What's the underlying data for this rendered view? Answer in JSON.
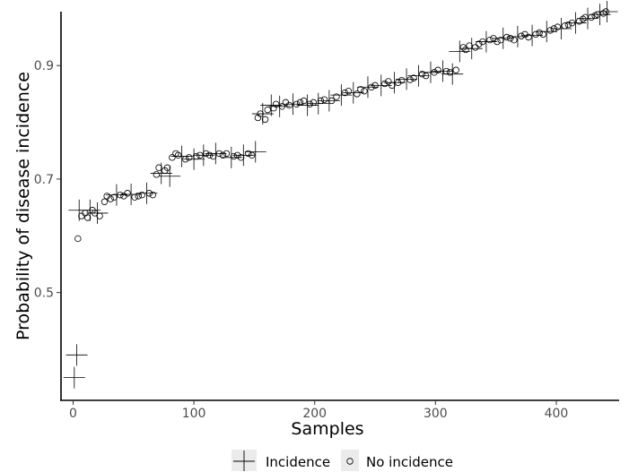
{
  "chart_data": {
    "type": "scatter",
    "title": "",
    "xlabel": "Samples",
    "ylabel": "Probability of disease incidence",
    "xlim": [
      -10,
      452
    ],
    "ylim": [
      0.31,
      0.995
    ],
    "xticks": [
      0,
      100,
      200,
      300,
      400
    ],
    "yticks": [
      0.5,
      0.7,
      0.9
    ],
    "xtick_labels": [
      "0",
      "100",
      "200",
      "300",
      "400"
    ],
    "ytick_labels": [
      "0.5",
      "0.7",
      "0.9"
    ],
    "grid": false,
    "legend_position": "bottom",
    "series": [
      {
        "name": "Incidence",
        "marker": "cross",
        "points": [
          [
            3,
            0.39
          ],
          [
            1,
            0.35
          ],
          [
            5,
            0.645
          ],
          [
            14,
            0.645
          ],
          [
            20,
            0.64
          ],
          [
            36,
            0.672
          ],
          [
            48,
            0.673
          ],
          [
            61,
            0.675
          ],
          [
            73,
            0.71
          ],
          [
            80,
            0.705
          ],
          [
            90,
            0.74
          ],
          [
            100,
            0.735
          ],
          [
            108,
            0.742
          ],
          [
            118,
            0.745
          ],
          [
            131,
            0.738
          ],
          [
            141,
            0.742
          ],
          [
            151,
            0.748
          ],
          [
            157,
            0.815
          ],
          [
            164,
            0.83
          ],
          [
            171,
            0.828
          ],
          [
            182,
            0.832
          ],
          [
            194,
            0.83
          ],
          [
            203,
            0.833
          ],
          [
            212,
            0.838
          ],
          [
            222,
            0.848
          ],
          [
            232,
            0.852
          ],
          [
            244,
            0.862
          ],
          [
            255,
            0.865
          ],
          [
            266,
            0.87
          ],
          [
            276,
            0.876
          ],
          [
            286,
            0.882
          ],
          [
            296,
            0.888
          ],
          [
            306,
            0.89
          ],
          [
            314,
            0.885
          ],
          [
            320,
            0.925
          ],
          [
            330,
            0.93
          ],
          [
            342,
            0.942
          ],
          [
            356,
            0.948
          ],
          [
            368,
            0.951
          ],
          [
            380,
            0.953
          ],
          [
            392,
            0.96
          ],
          [
            404,
            0.965
          ],
          [
            416,
            0.975
          ],
          [
            426,
            0.983
          ],
          [
            436,
            0.99
          ],
          [
            442,
            0.995
          ]
        ]
      },
      {
        "name": "No incidence",
        "marker": "circle",
        "points": [
          [
            4,
            0.595
          ],
          [
            7,
            0.635
          ],
          [
            10,
            0.64
          ],
          [
            12,
            0.632
          ],
          [
            16,
            0.645
          ],
          [
            18,
            0.64
          ],
          [
            22,
            0.635
          ],
          [
            26,
            0.66
          ],
          [
            28,
            0.67
          ],
          [
            31,
            0.665
          ],
          [
            34,
            0.668
          ],
          [
            39,
            0.672
          ],
          [
            42,
            0.67
          ],
          [
            45,
            0.675
          ],
          [
            51,
            0.668
          ],
          [
            54,
            0.67
          ],
          [
            57,
            0.672
          ],
          [
            63,
            0.675
          ],
          [
            66,
            0.672
          ],
          [
            69,
            0.708
          ],
          [
            71,
            0.72
          ],
          [
            76,
            0.715
          ],
          [
            78,
            0.72
          ],
          [
            82,
            0.738
          ],
          [
            85,
            0.745
          ],
          [
            87,
            0.742
          ],
          [
            93,
            0.735
          ],
          [
            96,
            0.738
          ],
          [
            102,
            0.74
          ],
          [
            105,
            0.742
          ],
          [
            110,
            0.745
          ],
          [
            113,
            0.742
          ],
          [
            116,
            0.74
          ],
          [
            121,
            0.745
          ],
          [
            124,
            0.742
          ],
          [
            127,
            0.745
          ],
          [
            133,
            0.74
          ],
          [
            136,
            0.742
          ],
          [
            139,
            0.738
          ],
          [
            145,
            0.745
          ],
          [
            148,
            0.742
          ],
          [
            153,
            0.808
          ],
          [
            155,
            0.815
          ],
          [
            159,
            0.805
          ],
          [
            161,
            0.822
          ],
          [
            166,
            0.825
          ],
          [
            168,
            0.832
          ],
          [
            173,
            0.828
          ],
          [
            176,
            0.835
          ],
          [
            179,
            0.83
          ],
          [
            185,
            0.832
          ],
          [
            188,
            0.835
          ],
          [
            191,
            0.838
          ],
          [
            196,
            0.832
          ],
          [
            199,
            0.835
          ],
          [
            205,
            0.838
          ],
          [
            208,
            0.84
          ],
          [
            214,
            0.838
          ],
          [
            218,
            0.845
          ],
          [
            225,
            0.852
          ],
          [
            228,
            0.855
          ],
          [
            235,
            0.85
          ],
          [
            238,
            0.858
          ],
          [
            241,
            0.855
          ],
          [
            247,
            0.862
          ],
          [
            250,
            0.865
          ],
          [
            258,
            0.868
          ],
          [
            261,
            0.872
          ],
          [
            264,
            0.865
          ],
          [
            269,
            0.87
          ],
          [
            272,
            0.874
          ],
          [
            279,
            0.875
          ],
          [
            282,
            0.878
          ],
          [
            289,
            0.885
          ],
          [
            292,
            0.882
          ],
          [
            299,
            0.888
          ],
          [
            302,
            0.892
          ],
          [
            309,
            0.89
          ],
          [
            312,
            0.888
          ],
          [
            317,
            0.892
          ],
          [
            323,
            0.932
          ],
          [
            325,
            0.928
          ],
          [
            328,
            0.935
          ],
          [
            333,
            0.932
          ],
          [
            336,
            0.938
          ],
          [
            339,
            0.942
          ],
          [
            345,
            0.945
          ],
          [
            348,
            0.948
          ],
          [
            351,
            0.942
          ],
          [
            354,
            0.945
          ],
          [
            359,
            0.95
          ],
          [
            362,
            0.948
          ],
          [
            365,
            0.945
          ],
          [
            371,
            0.952
          ],
          [
            374,
            0.955
          ],
          [
            377,
            0.95
          ],
          [
            383,
            0.955
          ],
          [
            386,
            0.958
          ],
          [
            389,
            0.955
          ],
          [
            395,
            0.962
          ],
          [
            398,
            0.965
          ],
          [
            401,
            0.968
          ],
          [
            407,
            0.97
          ],
          [
            410,
            0.972
          ],
          [
            413,
            0.975
          ],
          [
            419,
            0.978
          ],
          [
            422,
            0.982
          ],
          [
            424,
            0.985
          ],
          [
            429,
            0.985
          ],
          [
            432,
            0.988
          ],
          [
            434,
            0.99
          ],
          [
            439,
            0.992
          ],
          [
            441,
            0.995
          ]
        ]
      }
    ]
  },
  "legend": {
    "items": [
      {
        "label": "Incidence",
        "marker": "cross"
      },
      {
        "label": "No incidence",
        "marker": "circle"
      }
    ]
  }
}
